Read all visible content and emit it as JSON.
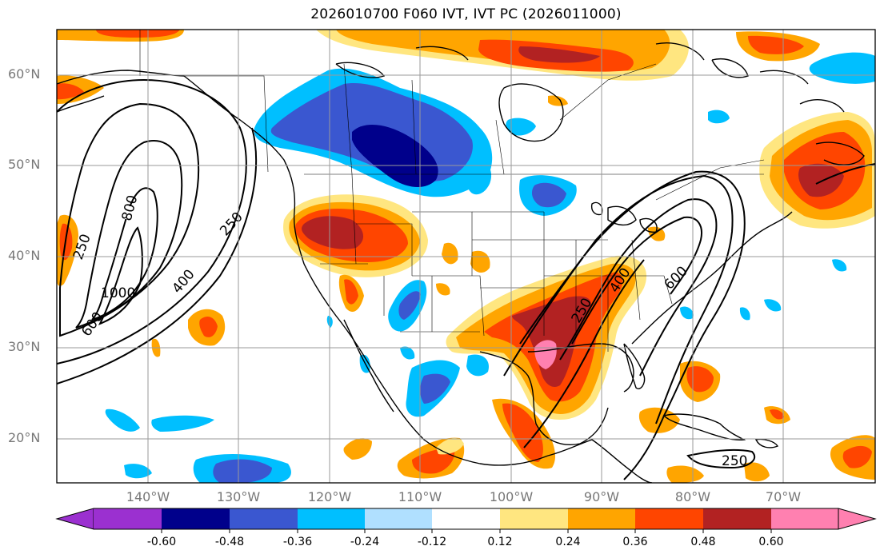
{
  "title": "2026010700 F060 IVT, IVT PC (2026011000)",
  "lat_ticks": [
    "60°N",
    "50°N",
    "40°N",
    "30°N",
    "20°N"
  ],
  "lon_ticks": [
    "140°W",
    "130°W",
    "120°W",
    "110°W",
    "100°W",
    "90°W",
    "80°W",
    "70°W"
  ],
  "colorbar": {
    "labels": [
      "-0.60",
      "-0.48",
      "-0.36",
      "-0.24",
      "-0.12",
      "0.12",
      "0.24",
      "0.36",
      "0.48",
      "0.60"
    ],
    "colors": [
      "#9b30d0",
      "#00008b",
      "#3a57d0",
      "#00bfff",
      "#b0e0ff",
      "#ffffff",
      "#ffe680",
      "#ffa500",
      "#ff4500",
      "#b22222",
      "#ff80b0"
    ]
  },
  "contour_labels": [
    "800",
    "250",
    "400",
    "1000",
    "600",
    "250",
    "400",
    "600",
    "250"
  ]
}
